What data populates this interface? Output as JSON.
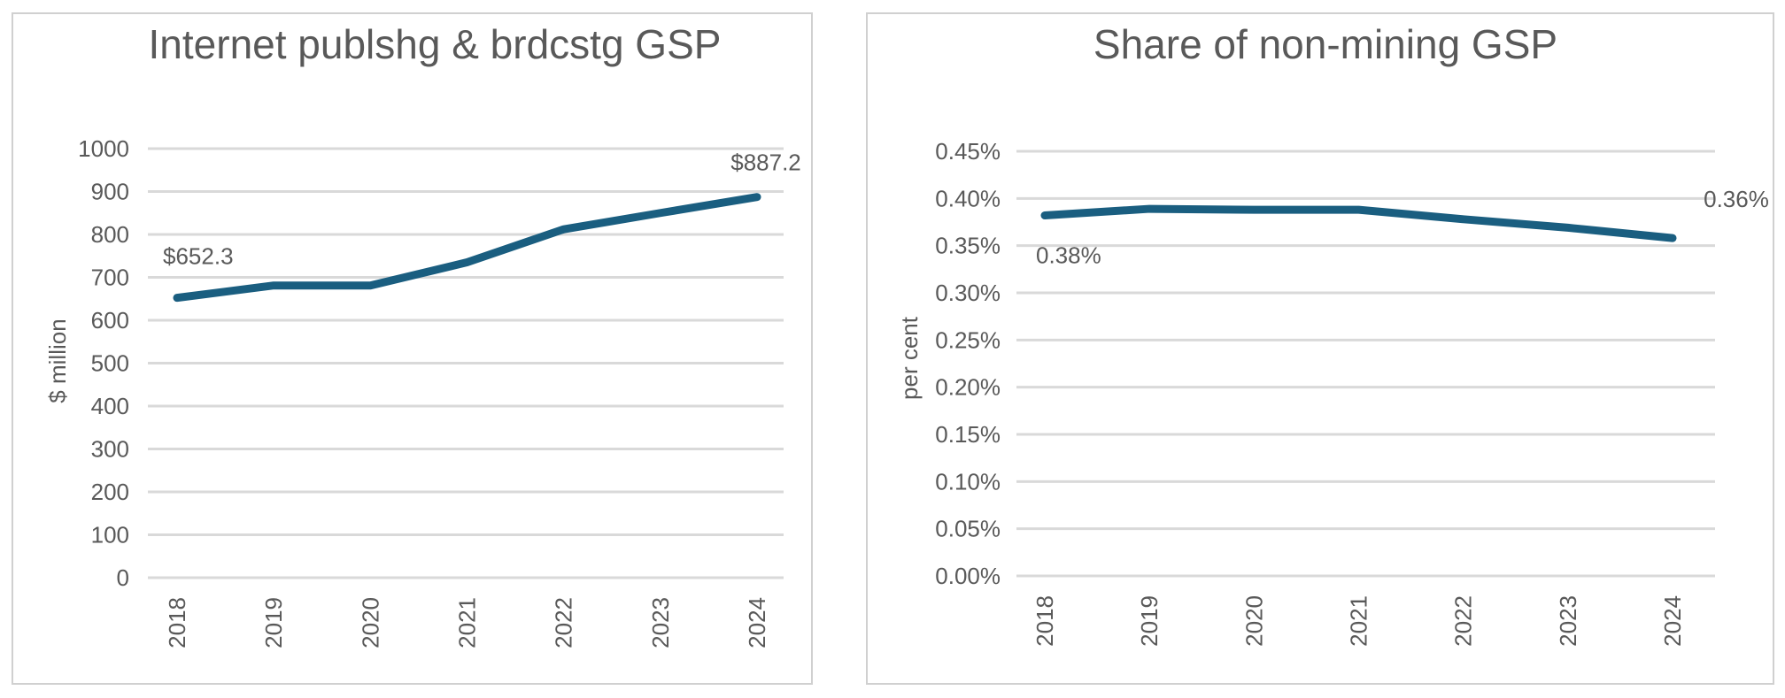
{
  "chart_data": [
    {
      "type": "line",
      "title": "Internet publshg & brdcstg GSP",
      "xlabel": "",
      "ylabel": "$ million",
      "categories": [
        "2018",
        "2019",
        "2020",
        "2021",
        "2022",
        "2023",
        "2024"
      ],
      "values": [
        652.3,
        681,
        681,
        735,
        812,
        850,
        887.2
      ],
      "ylim": [
        0,
        1000
      ],
      "yticks": [
        "0",
        "100",
        "200",
        "300",
        "400",
        "500",
        "600",
        "700",
        "800",
        "900",
        "1000"
      ],
      "data_labels": [
        {
          "category": "2018",
          "text": "$652.3"
        },
        {
          "category": "2024",
          "text": "$887.2"
        }
      ],
      "grid": true,
      "legend": "none",
      "line_color": "#1a5e80"
    },
    {
      "type": "line",
      "title": "Share of non-mining GSP",
      "xlabel": "",
      "ylabel": "per cent",
      "categories": [
        "2018",
        "2019",
        "2020",
        "2021",
        "2022",
        "2023",
        "2024"
      ],
      "values": [
        0.382,
        0.389,
        0.388,
        0.388,
        0.378,
        0.369,
        0.358
      ],
      "ylim": [
        0,
        0.45
      ],
      "yticks": [
        "0.00%",
        "0.05%",
        "0.10%",
        "0.15%",
        "0.20%",
        "0.25%",
        "0.30%",
        "0.35%",
        "0.40%",
        "0.45%"
      ],
      "data_labels": [
        {
          "category": "2018",
          "text": "0.38%"
        },
        {
          "category": "2024",
          "text": "0.36%"
        }
      ],
      "grid": true,
      "legend": "none",
      "line_color": "#1a5e80"
    }
  ]
}
